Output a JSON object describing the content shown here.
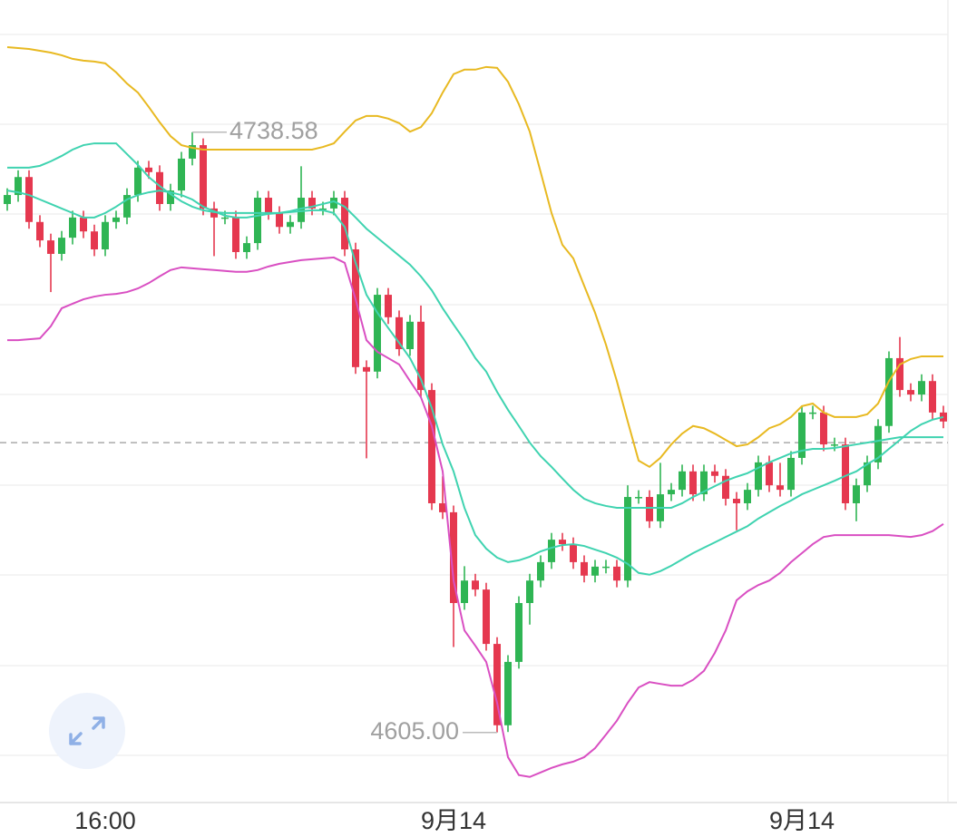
{
  "chart_data": {
    "type": "candlestick",
    "categories": [
      null,
      null,
      null,
      null,
      null,
      null,
      null,
      null,
      null,
      "16:00",
      null,
      null,
      null,
      null,
      null,
      null,
      null,
      null,
      null,
      null,
      null,
      null,
      null,
      null,
      null,
      null,
      null,
      null,
      null,
      null,
      null,
      null,
      null,
      null,
      null,
      null,
      null,
      null,
      null,
      null,
      null,
      "9月14",
      null,
      null,
      null,
      null,
      null,
      null,
      null,
      null,
      null,
      null,
      null,
      null,
      null,
      null,
      null,
      null,
      null,
      null,
      null,
      null,
      null,
      null,
      null,
      null,
      null,
      null,
      null,
      null,
      null,
      null,
      null,
      "9月14",
      null,
      null,
      null,
      null,
      null,
      null,
      null,
      null,
      null,
      null,
      null,
      null,
      null
    ],
    "open": [
      4722.6,
      4724.6,
      4728.6,
      4718.6,
      4714.5,
      4711.5,
      4715.1,
      4719.6,
      4716.5,
      4712.5,
      4718.6,
      4719.6,
      4724.6,
      4730.7,
      4729.7,
      4722.6,
      4725.6,
      4732.7,
      4735.7,
      4721.6,
      4719.6,
      4719.6,
      4711.9,
      4713.9,
      4724.0,
      4720.6,
      4717.5,
      4718.6,
      4724.0,
      4721.6,
      4721.6,
      4724.0,
      4712.5,
      4686.3,
      4685.3,
      4702.4,
      4697.4,
      4690.3,
      4696.4,
      4681.2,
      4656.0,
      4654.0,
      4633.8,
      4638.8,
      4636.8,
      4624.7,
      4606.6,
      4620.7,
      4633.8,
      4638.8,
      4642.9,
      4647.9,
      4646.9,
      4642.9,
      4639.9,
      4641.9,
      4641.9,
      4638.8,
      4657.4,
      4657.4,
      4652.0,
      4658.0,
      4659.0,
      4663.1,
      4658.0,
      4663.1,
      4662.1,
      4657.0,
      4656.0,
      4659.0,
      4665.1,
      4660.0,
      4659.0,
      4666.1,
      4676.2,
      4676.2,
      4669.1,
      4669.1,
      4656.0,
      4660.0,
      4665.1,
      4673.2,
      4688.3,
      4681.2,
      4680.2,
      4683.2,
      4676.2
    ],
    "high": [
      4726.1,
      4730.1,
      4730.1,
      4720.1,
      4716.0,
      4716.6,
      4721.1,
      4721.1,
      4718.0,
      4720.1,
      4721.1,
      4726.1,
      4732.2,
      4732.2,
      4731.2,
      4727.1,
      4734.2,
      4738.58,
      4737.2,
      4723.1,
      4721.1,
      4721.1,
      4715.4,
      4725.5,
      4725.5,
      4722.1,
      4720.1,
      4731.0,
      4725.5,
      4723.1,
      4725.5,
      4725.5,
      4714.0,
      4687.8,
      4703.9,
      4703.9,
      4698.9,
      4697.9,
      4700.0,
      4682.7,
      4662.0,
      4655.5,
      4642.0,
      4640.3,
      4638.3,
      4626.2,
      4622.2,
      4635.3,
      4640.3,
      4644.4,
      4649.4,
      4649.4,
      4648.4,
      4644.4,
      4643.4,
      4643.4,
      4643.4,
      4660.0,
      4658.9,
      4658.9,
      4665.0,
      4660.5,
      4664.6,
      4664.6,
      4664.6,
      4664.6,
      4663.6,
      4658.5,
      4660.5,
      4666.6,
      4666.6,
      4665.0,
      4667.6,
      4677.7,
      4677.7,
      4677.7,
      4670.6,
      4670.6,
      4661.5,
      4666.6,
      4674.7,
      4689.8,
      4693.0,
      4682.7,
      4684.7,
      4684.7,
      4677.7
    ],
    "low": [
      4721.1,
      4723.1,
      4717.1,
      4713.0,
      4703.0,
      4710.0,
      4713.6,
      4715.0,
      4711.0,
      4711.0,
      4717.1,
      4718.1,
      4723.1,
      4728.2,
      4721.1,
      4721.1,
      4724.1,
      4731.2,
      4720.1,
      4711.0,
      4718.1,
      4710.4,
      4710.4,
      4712.4,
      4719.1,
      4716.0,
      4716.0,
      4717.1,
      4720.1,
      4720.1,
      4720.1,
      4711.0,
      4684.8,
      4666.0,
      4683.8,
      4695.9,
      4688.8,
      4688.8,
      4679.7,
      4654.5,
      4652.5,
      4624.0,
      4632.3,
      4635.3,
      4623.2,
      4605.0,
      4605.1,
      4619.2,
      4629.0,
      4637.3,
      4641.4,
      4645.4,
      4641.4,
      4638.4,
      4638.4,
      4640.4,
      4637.3,
      4637.3,
      4655.9,
      4650.5,
      4650.5,
      4656.5,
      4657.5,
      4656.5,
      4656.5,
      4660.6,
      4655.5,
      4650.0,
      4654.5,
      4657.5,
      4658.5,
      4657.5,
      4657.5,
      4664.6,
      4674.7,
      4667.6,
      4667.6,
      4654.5,
      4652.0,
      4658.5,
      4663.6,
      4671.7,
      4679.7,
      4678.7,
      4678.7,
      4674.7,
      4672.7
    ],
    "close": [
      4724.6,
      4728.6,
      4718.6,
      4714.5,
      4711.5,
      4715.1,
      4719.6,
      4716.5,
      4712.5,
      4718.6,
      4719.6,
      4724.6,
      4730.7,
      4729.7,
      4722.6,
      4725.6,
      4732.7,
      4735.7,
      4721.6,
      4719.6,
      4719.6,
      4711.9,
      4713.9,
      4724.0,
      4720.6,
      4717.5,
      4718.6,
      4724.0,
      4721.6,
      4721.6,
      4724.0,
      4712.5,
      4686.3,
      4685.3,
      4702.4,
      4697.4,
      4690.3,
      4696.4,
      4681.2,
      4656.0,
      4654.0,
      4633.8,
      4638.8,
      4636.8,
      4624.7,
      4606.6,
      4620.7,
      4633.8,
      4638.8,
      4642.9,
      4647.9,
      4646.9,
      4642.9,
      4639.9,
      4641.9,
      4641.9,
      4638.8,
      4657.4,
      4657.4,
      4652.0,
      4658.0,
      4659.0,
      4663.1,
      4658.0,
      4663.1,
      4662.1,
      4657.0,
      4656.0,
      4659.0,
      4665.1,
      4660.0,
      4659.0,
      4666.1,
      4676.2,
      4676.2,
      4669.1,
      4669.1,
      4656.0,
      4660.0,
      4665.1,
      4673.2,
      4688.3,
      4681.2,
      4680.2,
      4683.2,
      4676.2,
      4674.2
    ],
    "up_color": "#2fb554",
    "down_color": "#e5384f",
    "overlays": [
      {
        "color": "#e8b921",
        "values": [
          4757.5,
          4757.3,
          4757.1,
          4756.7,
          4756.3,
          4755.7,
          4754.9,
          4754.5,
          4754.3,
          4753.9,
          4751.9,
          4749.4,
          4747.4,
          4744.2,
          4740.8,
          4737.7,
          4735.7,
          4735.1,
          4734.7,
          4734.7,
          4734.7,
          4734.7,
          4734.7,
          4734.7,
          4734.7,
          4734.7,
          4734.7,
          4734.7,
          4734.7,
          4735.3,
          4736.1,
          4738.7,
          4741.2,
          4742.2,
          4742.2,
          4741.6,
          4740.6,
          4738.7,
          4739.7,
          4742.8,
          4747.4,
          4751.5,
          4752.5,
          4752.5,
          4753.1,
          4752.9,
          4749.8,
          4744.8,
          4738.7,
          4729.7,
          4720.6,
          4713.5,
          4710.5,
          4704.4,
          4698.4,
          4691.3,
          4683.2,
          4674.2,
          4665.5,
          4664.1,
          4666.1,
          4669.1,
          4671.5,
          4673.2,
          4672.7,
          4671.5,
          4670.1,
          4668.7,
          4669.1,
          4670.7,
          4672.7,
          4673.6,
          4675.2,
          4677.6,
          4678.2,
          4676.2,
          4675.2,
          4675.2,
          4675.2,
          4675.8,
          4678.2,
          4683.2,
          4686.9,
          4688.1,
          4688.7,
          4688.7,
          4688.7
        ]
      },
      {
        "color": "#3fd3b0",
        "values": [
          4730.7,
          4730.7,
          4730.7,
          4731.1,
          4732.1,
          4733.3,
          4734.7,
          4735.7,
          4736.1,
          4736.1,
          4736.1,
          4733.7,
          4731.3,
          4728.6,
          4726.6,
          4724.8,
          4723.2,
          4722.0,
          4721.2,
          4720.8,
          4720.6,
          4720.6,
          4720.6,
          4720.6,
          4720.6,
          4720.6,
          4721.0,
          4721.6,
          4722.0,
          4722.6,
          4723.2,
          4722.0,
          4719.6,
          4717.1,
          4715.1,
          4713.1,
          4711.1,
          4709.1,
          4706.5,
          4703.4,
          4699.4,
          4695.8,
          4692.3,
          4688.3,
          4685.3,
          4680.8,
          4676.8,
          4673.2,
          4669.5,
          4666.5,
          4664.1,
          4661.5,
          4659.0,
          4657.0,
          4656.0,
          4655.4,
          4655.0,
          4655.0,
          4655.0,
          4655.0,
          4655.0,
          4655.0,
          4656.0,
          4657.4,
          4658.6,
          4659.8,
          4661.0,
          4661.9,
          4662.7,
          4663.9,
          4665.1,
          4666.1,
          4667.1,
          4667.7,
          4668.1,
          4668.1,
          4668.3,
          4668.7,
          4669.1,
          4669.5,
          4669.9,
          4670.3,
          4670.7,
          4670.7,
          4670.7,
          4670.7,
          4670.7
        ]
      },
      {
        "color": "#3fd3b0",
        "values": [
          4725.6,
          4725.2,
          4724.6,
          4723.6,
          4722.6,
          4721.6,
          4720.6,
          4719.6,
          4719.6,
          4720.6,
          4722.0,
          4723.6,
          4724.6,
          4725.2,
          4725.6,
          4725.2,
          4724.6,
          4723.6,
          4722.0,
          4721.0,
          4720.0,
          4719.6,
          4719.6,
          4720.0,
          4720.4,
          4720.6,
          4720.8,
          4721.0,
          4721.2,
          4721.2,
          4720.6,
          4717.5,
          4709.5,
          4702.4,
          4698.4,
          4695.0,
          4691.7,
          4688.3,
          4683.6,
          4677.2,
          4669.1,
          4663.1,
          4655.0,
          4648.9,
          4645.9,
          4643.9,
          4642.9,
          4643.3,
          4644.1,
          4645.3,
          4646.1,
          4646.7,
          4646.9,
          4646.5,
          4645.7,
          4644.9,
          4643.9,
          4642.5,
          4640.5,
          4640.1,
          4640.9,
          4642.1,
          4643.5,
          4644.9,
          4646.1,
          4647.3,
          4648.5,
          4649.7,
          4650.9,
          4652.6,
          4654.0,
          4655.4,
          4656.6,
          4658.0,
          4659.0,
          4660.0,
          4661.0,
          4662.1,
          4663.1,
          4664.7,
          4666.1,
          4668.1,
          4670.1,
          4672.1,
          4673.6,
          4674.6,
          4675.2
        ]
      },
      {
        "color": "#d94fc2",
        "values": [
          4692.3,
          4692.3,
          4692.5,
          4692.7,
          4695.4,
          4699.4,
          4700.4,
          4701.4,
          4702.0,
          4702.4,
          4702.6,
          4703.0,
          4703.8,
          4705.0,
          4706.5,
          4707.9,
          4708.5,
          4708.3,
          4708.1,
          4707.9,
          4707.7,
          4707.5,
          4707.5,
          4707.9,
          4708.7,
          4709.3,
          4709.7,
          4710.1,
          4710.3,
          4710.5,
          4710.7,
          4709.5,
          4701.4,
          4692.3,
          4689.7,
          4688.3,
          4686.9,
          4683.2,
          4679.6,
          4673.2,
          4663.1,
          4638.8,
          4627.7,
          4624.3,
          4620.7,
          4611.6,
          4599.5,
          4595.5,
          4595.1,
          4596.1,
          4597.1,
          4597.9,
          4598.5,
          4599.5,
          4601.5,
          4604.5,
          4607.6,
          4611.6,
          4615.0,
          4616.2,
          4615.8,
          4615.4,
          4615.4,
          4616.7,
          4618.7,
          4622.7,
          4627.7,
          4634.4,
          4636.4,
          4637.8,
          4638.8,
          4640.5,
          4642.9,
          4644.9,
          4646.9,
          4648.5,
          4648.9,
          4648.9,
          4648.9,
          4648.9,
          4648.9,
          4648.9,
          4648.7,
          4648.5,
          4648.9,
          4649.8,
          4651.4
        ]
      }
    ],
    "high_label": 4738.58,
    "low_label": {
      "value": 4605,
      "label": "4605.00"
    },
    "last_price": 4669.5,
    "ylim": [
      4589.4,
      4768
    ]
  }
}
